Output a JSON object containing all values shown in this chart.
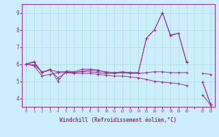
{
  "xlabel": "Windchill (Refroidissement éolien,°C)",
  "background_color": "#cceeff",
  "grid_color": "#aadddd",
  "line_color": "#993399",
  "xlim": [
    -0.5,
    23.5
  ],
  "ylim": [
    3.5,
    9.5
  ],
  "yticks": [
    4,
    5,
    6,
    7,
    8,
    9
  ],
  "xtick_labels": [
    "0",
    "1",
    "2",
    "3",
    "4",
    "5",
    "6",
    "7",
    "8",
    "9",
    "10",
    "11",
    "12",
    "13",
    "14",
    "15",
    "16",
    "17",
    "18",
    "19",
    "20",
    "",
    "22",
    "23"
  ],
  "series": [
    [
      6.0,
      6.15,
      5.5,
      5.7,
      5.0,
      5.6,
      5.55,
      5.7,
      5.7,
      5.65,
      5.5,
      5.5,
      5.55,
      5.5,
      5.5,
      7.5,
      8.0,
      9.0,
      7.7,
      7.8,
      6.15,
      null,
      4.95,
      3.65
    ],
    [
      6.0,
      6.1,
      5.5,
      5.65,
      5.55,
      5.55,
      5.5,
      5.6,
      5.65,
      5.6,
      5.55,
      5.5,
      5.5,
      5.5,
      5.5,
      7.5,
      8.0,
      9.0,
      7.65,
      7.8,
      6.1,
      null,
      4.95,
      3.65
    ],
    [
      6.0,
      5.95,
      5.55,
      5.65,
      5.2,
      5.5,
      5.5,
      5.55,
      5.55,
      5.5,
      5.45,
      5.45,
      5.5,
      5.45,
      5.45,
      5.5,
      5.55,
      5.55,
      5.5,
      5.5,
      5.5,
      null,
      5.45,
      5.4
    ],
    [
      6.0,
      5.9,
      5.3,
      5.4,
      5.5,
      5.5,
      5.45,
      5.45,
      5.45,
      5.4,
      5.35,
      5.3,
      5.3,
      5.25,
      5.2,
      5.1,
      5.0,
      4.95,
      4.9,
      4.85,
      4.75,
      null,
      4.2,
      3.6
    ]
  ],
  "figsize": [
    3.2,
    2.0
  ],
  "dpi": 100
}
